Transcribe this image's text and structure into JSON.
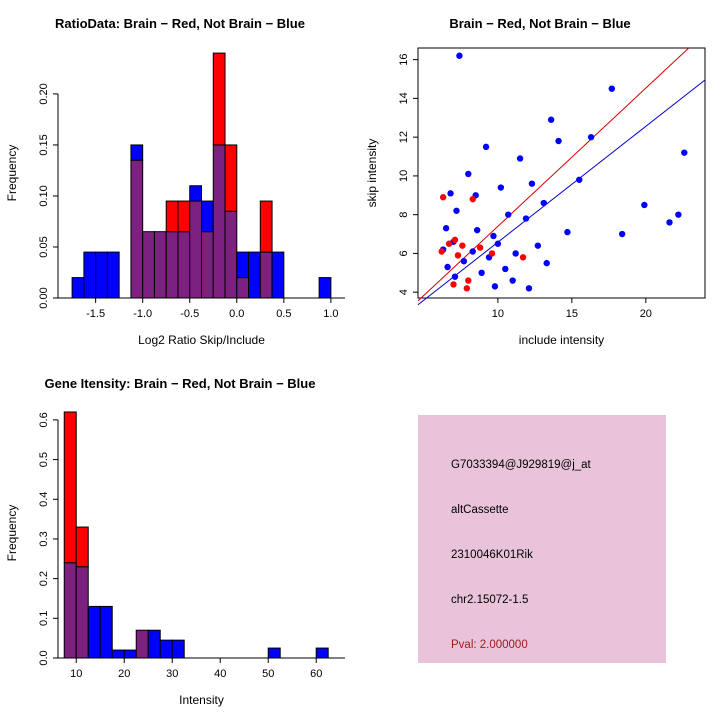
{
  "colors": {
    "background": "#ffffff",
    "red": "#ff0000",
    "blue": "#0000ff",
    "overlap": "#7d2181",
    "line_red": "#d40000",
    "line_blue": "#0000cd",
    "axis": "#000000",
    "info_box_bg": "#e8c3d9",
    "pval_text": "#9e1b1b"
  },
  "chart_data": [
    {
      "id": "ratio_hist",
      "type": "histogram",
      "title": "RatioData: Brain − Red, Not Brain − Blue",
      "xlabel": "Log2 Ratio Skip/Include",
      "ylabel": "Frequency",
      "legend_note": "Brain = red, Not Brain = blue, overlap = purple",
      "xlim": [
        -1.9,
        1.15
      ],
      "ylim": [
        0,
        0.245
      ],
      "xticks": {
        "values": [
          -1.5,
          -1.0,
          -0.5,
          0.0,
          0.5,
          1.0
        ],
        "labels": [
          "-1.5",
          "-1.0",
          "-0.5",
          "0.0",
          "0.5",
          "1.0"
        ]
      },
      "yticks": {
        "values": [
          0,
          0.05,
          0.1,
          0.15,
          0.2
        ],
        "labels": [
          "0.00",
          "0.05",
          "0.10",
          "0.15",
          "0.20"
        ]
      },
      "bin_start": -1.75,
      "bin_width": 0.125,
      "blue": [
        0.02,
        0.045,
        0.045,
        0.045,
        0,
        0.15,
        0.065,
        0.065,
        0.065,
        0.065,
        0.11,
        0.095,
        0.15,
        0.085,
        0.045,
        0.045,
        0.045,
        0.045,
        0,
        0,
        0,
        0.02
      ],
      "red": [
        0,
        0,
        0,
        0,
        0,
        0.135,
        0.065,
        0.065,
        0.095,
        0.095,
        0.095,
        0.065,
        0.24,
        0.15,
        0.02,
        0,
        0.095,
        0,
        0,
        0,
        0,
        0
      ]
    },
    {
      "id": "intensity_scatter",
      "type": "scatter",
      "title": "Brain − Red, Not Brain − Blue",
      "xlabel": "include intensity",
      "ylabel": "skip intensity",
      "xlim": [
        4.6,
        24
      ],
      "ylim": [
        3.7,
        16.6
      ],
      "xticks": {
        "values": [
          10,
          15,
          20
        ],
        "labels": [
          "10",
          "15",
          "20"
        ]
      },
      "yticks": {
        "values": [
          4,
          6,
          8,
          10,
          12,
          14,
          16
        ],
        "labels": [
          "4",
          "6",
          "8",
          "10",
          "12",
          "14",
          "16"
        ]
      },
      "blue_points": [
        [
          7.4,
          16.2
        ],
        [
          17.7,
          14.5
        ],
        [
          13.6,
          12.9
        ],
        [
          16.3,
          12.0
        ],
        [
          14.1,
          11.8
        ],
        [
          9.2,
          11.5
        ],
        [
          11.5,
          10.9
        ],
        [
          22.6,
          11.2
        ],
        [
          8.0,
          10.1
        ],
        [
          12.3,
          9.6
        ],
        [
          10.2,
          9.4
        ],
        [
          6.8,
          9.1
        ],
        [
          8.5,
          9.0
        ],
        [
          15.5,
          9.8
        ],
        [
          13.1,
          8.6
        ],
        [
          19.9,
          8.5
        ],
        [
          7.2,
          8.2
        ],
        [
          10.7,
          8.0
        ],
        [
          22.2,
          8.0
        ],
        [
          11.9,
          7.8
        ],
        [
          21.6,
          7.6
        ],
        [
          6.5,
          7.3
        ],
        [
          8.6,
          7.2
        ],
        [
          14.7,
          7.1
        ],
        [
          18.4,
          7.0
        ],
        [
          9.7,
          6.9
        ],
        [
          7.0,
          6.6
        ],
        [
          10.0,
          6.5
        ],
        [
          12.7,
          6.4
        ],
        [
          6.3,
          6.2
        ],
        [
          8.3,
          6.1
        ],
        [
          11.2,
          6.0
        ],
        [
          9.4,
          5.8
        ],
        [
          7.7,
          5.6
        ],
        [
          13.3,
          5.5
        ],
        [
          6.6,
          5.3
        ],
        [
          10.5,
          5.2
        ],
        [
          8.9,
          5.0
        ],
        [
          7.1,
          4.8
        ],
        [
          11.0,
          4.6
        ],
        [
          9.8,
          4.3
        ],
        [
          12.1,
          4.2
        ]
      ],
      "red_points": [
        [
          6.3,
          8.9
        ],
        [
          8.3,
          8.8
        ],
        [
          7.1,
          6.7
        ],
        [
          6.7,
          6.5
        ],
        [
          7.6,
          6.4
        ],
        [
          8.8,
          6.3
        ],
        [
          6.2,
          6.1
        ],
        [
          9.6,
          6.0
        ],
        [
          7.3,
          5.9
        ],
        [
          11.7,
          5.8
        ],
        [
          8.0,
          4.6
        ],
        [
          7.0,
          4.4
        ],
        [
          7.9,
          4.2
        ]
      ],
      "red_line": {
        "p1": [
          4.6,
          3.55
        ],
        "p2": [
          22.9,
          16.6
        ]
      },
      "blue_line": {
        "p1": [
          4.6,
          3.35
        ],
        "p2": [
          24,
          14.95
        ]
      }
    },
    {
      "id": "gene_hist",
      "type": "histogram",
      "title": "Gene Itensity: Brain − Red, Not Brain − Blue",
      "xlabel": "Intensity",
      "ylabel": "Frequency",
      "legend_note": "Brain = red, Not Brain = blue, overlap = purple",
      "xlim": [
        6.2,
        66
      ],
      "ylim": [
        0,
        0.63
      ],
      "xticks": {
        "values": [
          10,
          20,
          30,
          40,
          50,
          60
        ],
        "labels": [
          "10",
          "20",
          "30",
          "40",
          "50",
          "60"
        ]
      },
      "yticks": {
        "values": [
          0,
          0.1,
          0.2,
          0.3,
          0.4,
          0.5,
          0.6
        ],
        "labels": [
          "0.0",
          "0.1",
          "0.2",
          "0.3",
          "0.4",
          "0.5",
          "0.6"
        ]
      },
      "bin_start": 7.5,
      "bin_width": 2.5,
      "blue": [
        0.24,
        0.23,
        0.13,
        0.13,
        0.02,
        0.02,
        0.07,
        0.07,
        0.045,
        0.045,
        0,
        0,
        0,
        0,
        0,
        0,
        0,
        0.025,
        0,
        0,
        0,
        0.025
      ],
      "red": [
        0.62,
        0.33,
        0,
        0,
        0,
        0,
        0.07,
        0,
        0,
        0,
        0,
        0,
        0,
        0,
        0,
        0,
        0,
        0,
        0,
        0,
        0,
        0
      ]
    }
  ],
  "info_box": {
    "probe_id": "G7033394@J929819@j_at",
    "event_type": "altCassette",
    "gene_symbol": "2310046K01Rik",
    "locus": "chr2.15072-1.5",
    "pval": "Pval: 2.000000"
  }
}
